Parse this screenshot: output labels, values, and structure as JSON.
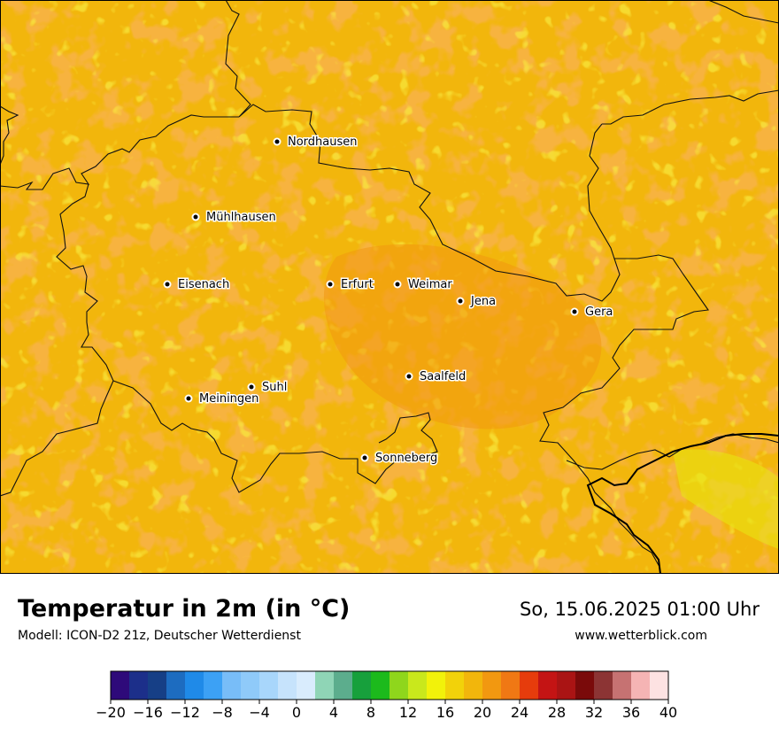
{
  "map": {
    "cities": [
      {
        "name": "Nordhausen"
      },
      {
        "name": "Mühlhausen"
      },
      {
        "name": "Eisenach"
      },
      {
        "name": "Erfurt"
      },
      {
        "name": "Weimar"
      },
      {
        "name": "Jena"
      },
      {
        "name": "Gera"
      },
      {
        "name": "Suhl"
      },
      {
        "name": "Meiningen"
      },
      {
        "name": "Saalfeld"
      },
      {
        "name": "Sonneberg"
      }
    ]
  },
  "footer": {
    "title": "Temperatur in 2m (in °C)",
    "model": "Modell: ICON-D2 21z, Deutscher Wetterdienst",
    "datetime": "So, 15.06.2025 01:00 Uhr",
    "website": "www.wetterblick.com"
  },
  "legend": {
    "tick_labels": [
      "−20",
      "−16",
      "−12",
      "−8",
      "−4",
      "0",
      "4",
      "8",
      "12",
      "16",
      "20",
      "24",
      "28",
      "32",
      "36",
      "40"
    ],
    "colors": [
      "#2e0a7a",
      "#1c2f8a",
      "#163f86",
      "#1d6cc0",
      "#1f8ae8",
      "#3ca1f5",
      "#78bdf8",
      "#8fcaf9",
      "#a8d6fb",
      "#c6e3fc",
      "#d9ecfd",
      "#8fd5b6",
      "#5cad8d",
      "#17a03c",
      "#1cba1c",
      "#8fd61c",
      "#c9e81c",
      "#f2f20a",
      "#f2d20a",
      "#f2b60c",
      "#f29810",
      "#f07814",
      "#e63c0c",
      "#c41414",
      "#aa1414",
      "#7a0a0a",
      "#8c3434",
      "#c67272",
      "#f5b4b4",
      "#fde2e2"
    ]
  }
}
